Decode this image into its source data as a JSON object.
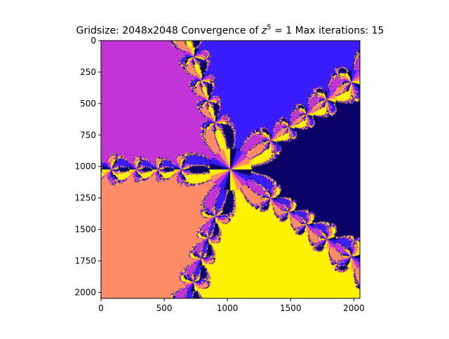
{
  "figure": {
    "title_prefix": "Gridsize: 2048x2048 Convergence of ",
    "title_base": "z",
    "title_exp": "5",
    "title_suffix": " = 1 Max iterations: 15"
  },
  "chart_data": {
    "type": "heatmap",
    "title": "Gridsize: 2048x2048 Convergence of z^5 = 1 Max iterations: 15",
    "xlabel": "",
    "ylabel": "",
    "grid": false,
    "xlim": [
      0,
      2048
    ],
    "ylim": [
      2048,
      0
    ],
    "xticks": [
      0,
      500,
      1000,
      1500,
      2000
    ],
    "yticks": [
      0,
      250,
      500,
      750,
      1000,
      1250,
      1500,
      1750,
      2000
    ],
    "grid_size": [
      2048,
      2048
    ],
    "equation": "z^5 = 1",
    "max_iterations": 15,
    "root_colors": [
      "#0a0066",
      "#3b1cff",
      "#c234d6",
      "#ff8c69",
      "#fff200"
    ],
    "colormap": "gnuplot2"
  }
}
